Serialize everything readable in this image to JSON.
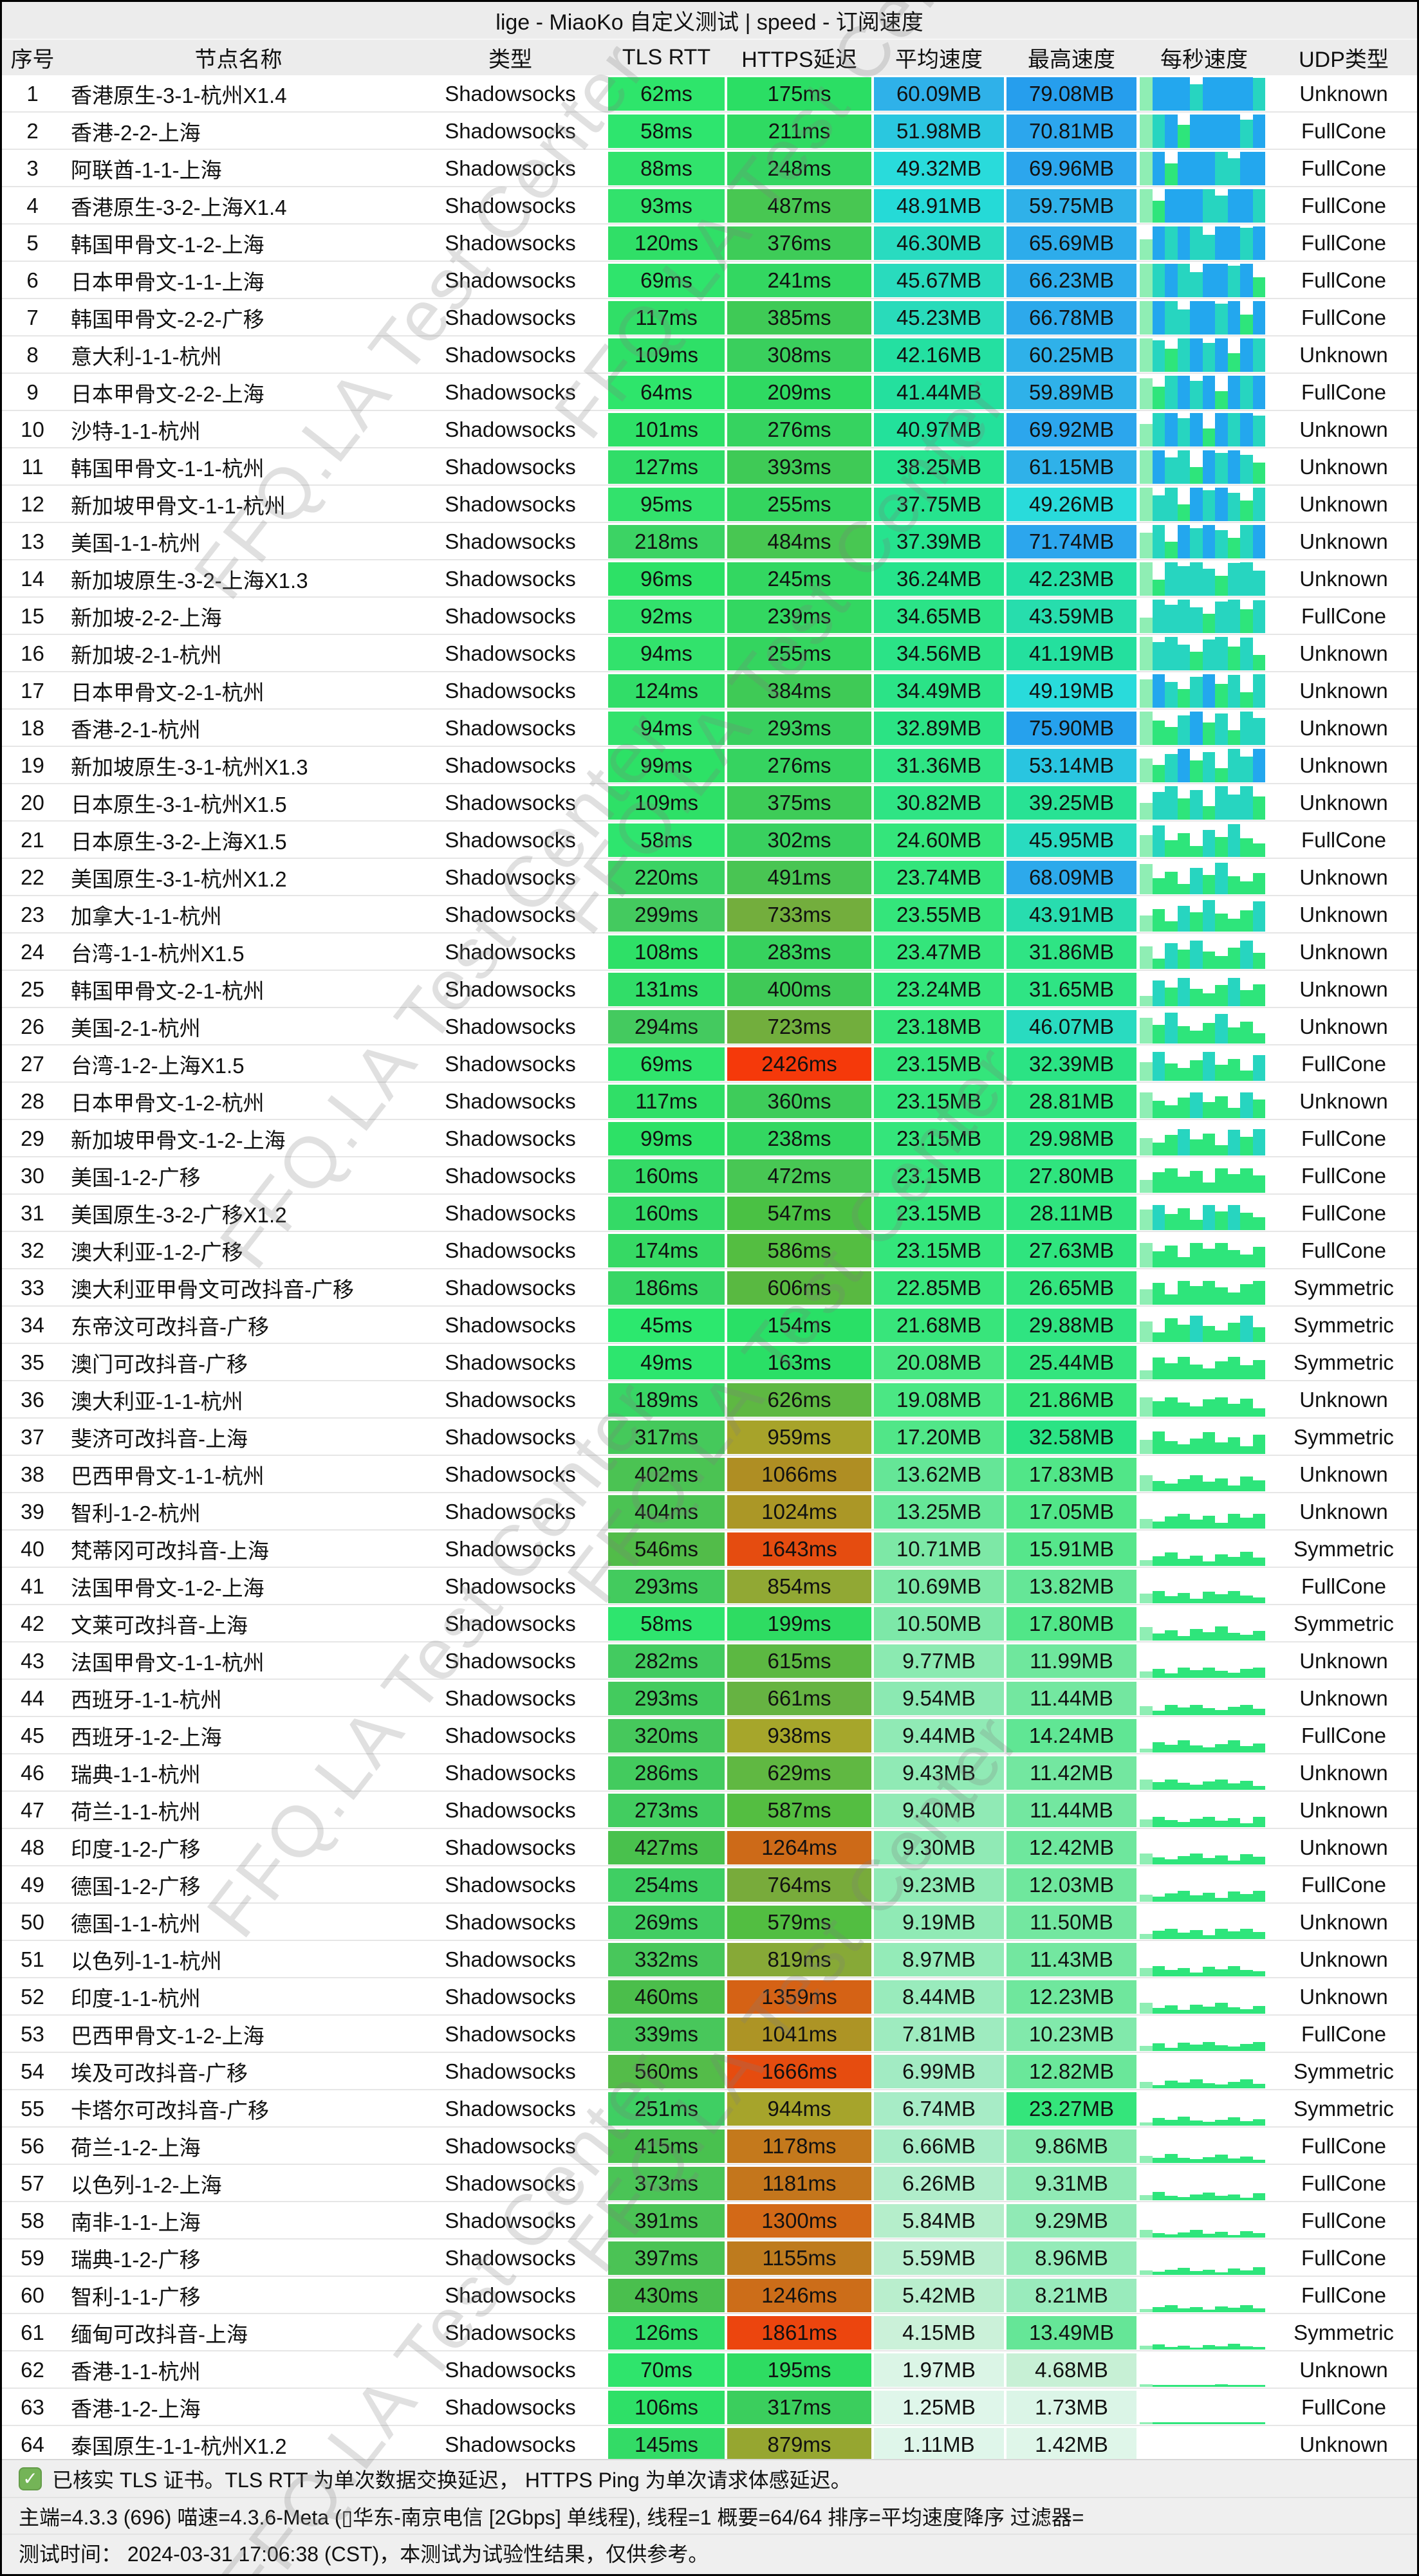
{
  "title": "lige - MiaoKo 自定义测试 | speed - 订阅速度",
  "columns": [
    "序号",
    "节点名称",
    "类型",
    "TLS RTT",
    "HTTPS延迟",
    "平均速度",
    "最高速度",
    "每秒速度",
    "UDP类型"
  ],
  "watermark_text": "FFQ.LA Test Center",
  "footer": {
    "line1": "已核实 TLS 证书。TLS RTT 为单次数据交换延迟， HTTPS Ping 为单次请求体感延迟。",
    "line2": "主端=4.3.3 (696) 喵速=4.3.6-Meta (▯华东-南京电信 [2Gbps] 单线程), 线程=1 概要=64/64 排序=平均速度降序 过滤器=",
    "line3": "测试时间： 2024-03-31 17:06:38 (CST)，本测试为试验性结果，仅供参考。"
  },
  "sparkline": {
    "profile": [
      0.62,
      1.02,
      1.45,
      0.78,
      1.08,
      0.5,
      1.25,
      0.92,
      1.5,
      0.85
    ],
    "scale_mb": 40,
    "color_blue": "#23a7ee",
    "color_teal": "#27d5c0",
    "color_green": "#2ee57b",
    "color_light": "#8feeb4"
  },
  "rows": [
    {
      "index": 1,
      "name": "香港原生-3-1-杭州X1.4",
      "type": "Shadowsocks",
      "tls_ms": 62,
      "https_ms": 175,
      "avg_mb": 60.09,
      "max_mb": 79.08,
      "udp": "Unknown"
    },
    {
      "index": 2,
      "name": "香港-2-2-上海",
      "type": "Shadowsocks",
      "tls_ms": 58,
      "https_ms": 211,
      "avg_mb": 51.98,
      "max_mb": 70.81,
      "udp": "FullCone"
    },
    {
      "index": 3,
      "name": "阿联酋-1-1-上海",
      "type": "Shadowsocks",
      "tls_ms": 88,
      "https_ms": 248,
      "avg_mb": 49.32,
      "max_mb": 69.96,
      "udp": "FullCone"
    },
    {
      "index": 4,
      "name": "香港原生-3-2-上海X1.4",
      "type": "Shadowsocks",
      "tls_ms": 93,
      "https_ms": 487,
      "avg_mb": 48.91,
      "max_mb": 59.75,
      "udp": "FullCone"
    },
    {
      "index": 5,
      "name": "韩国甲骨文-1-2-上海",
      "type": "Shadowsocks",
      "tls_ms": 120,
      "https_ms": 376,
      "avg_mb": 46.3,
      "max_mb": 65.69,
      "udp": "FullCone"
    },
    {
      "index": 6,
      "name": "日本甲骨文-1-1-上海",
      "type": "Shadowsocks",
      "tls_ms": 69,
      "https_ms": 241,
      "avg_mb": 45.67,
      "max_mb": 66.23,
      "udp": "FullCone"
    },
    {
      "index": 7,
      "name": "韩国甲骨文-2-2-广移",
      "type": "Shadowsocks",
      "tls_ms": 117,
      "https_ms": 385,
      "avg_mb": 45.23,
      "max_mb": 66.78,
      "udp": "FullCone"
    },
    {
      "index": 8,
      "name": "意大利-1-1-杭州",
      "type": "Shadowsocks",
      "tls_ms": 109,
      "https_ms": 308,
      "avg_mb": 42.16,
      "max_mb": 60.25,
      "udp": "Unknown"
    },
    {
      "index": 9,
      "name": "日本甲骨文-2-2-上海",
      "type": "Shadowsocks",
      "tls_ms": 64,
      "https_ms": 209,
      "avg_mb": 41.44,
      "max_mb": 59.89,
      "udp": "FullCone"
    },
    {
      "index": 10,
      "name": "沙特-1-1-杭州",
      "type": "Shadowsocks",
      "tls_ms": 101,
      "https_ms": 276,
      "avg_mb": 40.97,
      "max_mb": 69.92,
      "udp": "Unknown"
    },
    {
      "index": 11,
      "name": "韩国甲骨文-1-1-杭州",
      "type": "Shadowsocks",
      "tls_ms": 127,
      "https_ms": 393,
      "avg_mb": 38.25,
      "max_mb": 61.15,
      "udp": "Unknown"
    },
    {
      "index": 12,
      "name": "新加坡甲骨文-1-1-杭州",
      "type": "Shadowsocks",
      "tls_ms": 95,
      "https_ms": 255,
      "avg_mb": 37.75,
      "max_mb": 49.26,
      "udp": "Unknown"
    },
    {
      "index": 13,
      "name": "美国-1-1-杭州",
      "type": "Shadowsocks",
      "tls_ms": 218,
      "https_ms": 484,
      "avg_mb": 37.39,
      "max_mb": 71.74,
      "udp": "Unknown"
    },
    {
      "index": 14,
      "name": "新加坡原生-3-2-上海X1.3",
      "type": "Shadowsocks",
      "tls_ms": 96,
      "https_ms": 245,
      "avg_mb": 36.24,
      "max_mb": 42.23,
      "udp": "Unknown"
    },
    {
      "index": 15,
      "name": "新加坡-2-2-上海",
      "type": "Shadowsocks",
      "tls_ms": 92,
      "https_ms": 239,
      "avg_mb": 34.65,
      "max_mb": 43.59,
      "udp": "FullCone"
    },
    {
      "index": 16,
      "name": "新加坡-2-1-杭州",
      "type": "Shadowsocks",
      "tls_ms": 94,
      "https_ms": 255,
      "avg_mb": 34.56,
      "max_mb": 41.19,
      "udp": "Unknown"
    },
    {
      "index": 17,
      "name": "日本甲骨文-2-1-杭州",
      "type": "Shadowsocks",
      "tls_ms": 124,
      "https_ms": 384,
      "avg_mb": 34.49,
      "max_mb": 49.19,
      "udp": "Unknown"
    },
    {
      "index": 18,
      "name": "香港-2-1-杭州",
      "type": "Shadowsocks",
      "tls_ms": 94,
      "https_ms": 293,
      "avg_mb": 32.89,
      "max_mb": 75.9,
      "udp": "Unknown"
    },
    {
      "index": 19,
      "name": "新加坡原生-3-1-杭州X1.3",
      "type": "Shadowsocks",
      "tls_ms": 99,
      "https_ms": 276,
      "avg_mb": 31.36,
      "max_mb": 53.14,
      "udp": "Unknown"
    },
    {
      "index": 20,
      "name": "日本原生-3-1-杭州X1.5",
      "type": "Shadowsocks",
      "tls_ms": 109,
      "https_ms": 375,
      "avg_mb": 30.82,
      "max_mb": 39.25,
      "udp": "Unknown"
    },
    {
      "index": 21,
      "name": "日本原生-3-2-上海X1.5",
      "type": "Shadowsocks",
      "tls_ms": 58,
      "https_ms": 302,
      "avg_mb": 24.6,
      "max_mb": 45.95,
      "udp": "FullCone"
    },
    {
      "index": 22,
      "name": "美国原生-3-1-杭州X1.2",
      "type": "Shadowsocks",
      "tls_ms": 220,
      "https_ms": 491,
      "avg_mb": 23.74,
      "max_mb": 68.09,
      "udp": "Unknown"
    },
    {
      "index": 23,
      "name": "加拿大-1-1-杭州",
      "type": "Shadowsocks",
      "tls_ms": 299,
      "https_ms": 733,
      "avg_mb": 23.55,
      "max_mb": 43.91,
      "udp": "Unknown"
    },
    {
      "index": 24,
      "name": "台湾-1-1-杭州X1.5",
      "type": "Shadowsocks",
      "tls_ms": 108,
      "https_ms": 283,
      "avg_mb": 23.47,
      "max_mb": 31.86,
      "udp": "Unknown"
    },
    {
      "index": 25,
      "name": "韩国甲骨文-2-1-杭州",
      "type": "Shadowsocks",
      "tls_ms": 131,
      "https_ms": 400,
      "avg_mb": 23.24,
      "max_mb": 31.65,
      "udp": "Unknown"
    },
    {
      "index": 26,
      "name": "美国-2-1-杭州",
      "type": "Shadowsocks",
      "tls_ms": 294,
      "https_ms": 723,
      "avg_mb": 23.18,
      "max_mb": 46.07,
      "udp": "Unknown"
    },
    {
      "index": 27,
      "name": "台湾-1-2-上海X1.5",
      "type": "Shadowsocks",
      "tls_ms": 69,
      "https_ms": 2426,
      "avg_mb": 23.15,
      "max_mb": 32.39,
      "udp": "FullCone"
    },
    {
      "index": 28,
      "name": "日本甲骨文-1-2-杭州",
      "type": "Shadowsocks",
      "tls_ms": 117,
      "https_ms": 360,
      "avg_mb": 23.15,
      "max_mb": 28.81,
      "udp": "Unknown"
    },
    {
      "index": 29,
      "name": "新加坡甲骨文-1-2-上海",
      "type": "Shadowsocks",
      "tls_ms": 99,
      "https_ms": 238,
      "avg_mb": 23.15,
      "max_mb": 29.98,
      "udp": "FullCone"
    },
    {
      "index": 30,
      "name": "美国-1-2-广移",
      "type": "Shadowsocks",
      "tls_ms": 160,
      "https_ms": 472,
      "avg_mb": 23.15,
      "max_mb": 27.8,
      "udp": "FullCone"
    },
    {
      "index": 31,
      "name": "美国原生-3-2-广移X1.2",
      "type": "Shadowsocks",
      "tls_ms": 160,
      "https_ms": 547,
      "avg_mb": 23.15,
      "max_mb": 28.11,
      "udp": "FullCone"
    },
    {
      "index": 32,
      "name": "澳大利亚-1-2-广移",
      "type": "Shadowsocks",
      "tls_ms": 174,
      "https_ms": 586,
      "avg_mb": 23.15,
      "max_mb": 27.63,
      "udp": "FullCone"
    },
    {
      "index": 33,
      "name": "澳大利亚甲骨文可改抖音-广移",
      "type": "Shadowsocks",
      "tls_ms": 186,
      "https_ms": 606,
      "avg_mb": 22.85,
      "max_mb": 26.65,
      "udp": "Symmetric"
    },
    {
      "index": 34,
      "name": "东帝汶可改抖音-广移",
      "type": "Shadowsocks",
      "tls_ms": 45,
      "https_ms": 154,
      "avg_mb": 21.68,
      "max_mb": 29.88,
      "udp": "Symmetric"
    },
    {
      "index": 35,
      "name": "澳门可改抖音-广移",
      "type": "Shadowsocks",
      "tls_ms": 49,
      "https_ms": 163,
      "avg_mb": 20.08,
      "max_mb": 25.44,
      "udp": "Symmetric"
    },
    {
      "index": 36,
      "name": "澳大利亚-1-1-杭州",
      "type": "Shadowsocks",
      "tls_ms": 189,
      "https_ms": 626,
      "avg_mb": 19.08,
      "max_mb": 21.86,
      "udp": "Unknown"
    },
    {
      "index": 37,
      "name": "斐济可改抖音-上海",
      "type": "Shadowsocks",
      "tls_ms": 317,
      "https_ms": 959,
      "avg_mb": 17.2,
      "max_mb": 32.58,
      "udp": "Symmetric"
    },
    {
      "index": 38,
      "name": "巴西甲骨文-1-1-杭州",
      "type": "Shadowsocks",
      "tls_ms": 402,
      "https_ms": 1066,
      "avg_mb": 13.62,
      "max_mb": 17.83,
      "udp": "Unknown"
    },
    {
      "index": 39,
      "name": "智利-1-2-杭州",
      "type": "Shadowsocks",
      "tls_ms": 404,
      "https_ms": 1024,
      "avg_mb": 13.25,
      "max_mb": 17.05,
      "udp": "Unknown"
    },
    {
      "index": 40,
      "name": "梵蒂冈可改抖音-上海",
      "type": "Shadowsocks",
      "tls_ms": 546,
      "https_ms": 1643,
      "avg_mb": 10.71,
      "max_mb": 15.91,
      "udp": "Symmetric"
    },
    {
      "index": 41,
      "name": "法国甲骨文-1-2-上海",
      "type": "Shadowsocks",
      "tls_ms": 293,
      "https_ms": 854,
      "avg_mb": 10.69,
      "max_mb": 13.82,
      "udp": "FullCone"
    },
    {
      "index": 42,
      "name": "文莱可改抖音-上海",
      "type": "Shadowsocks",
      "tls_ms": 58,
      "https_ms": 199,
      "avg_mb": 10.5,
      "max_mb": 17.8,
      "udp": "Symmetric"
    },
    {
      "index": 43,
      "name": "法国甲骨文-1-1-杭州",
      "type": "Shadowsocks",
      "tls_ms": 282,
      "https_ms": 615,
      "avg_mb": 9.77,
      "max_mb": 11.99,
      "udp": "Unknown"
    },
    {
      "index": 44,
      "name": "西班牙-1-1-杭州",
      "type": "Shadowsocks",
      "tls_ms": 293,
      "https_ms": 661,
      "avg_mb": 9.54,
      "max_mb": 11.44,
      "udp": "Unknown"
    },
    {
      "index": 45,
      "name": "西班牙-1-2-上海",
      "type": "Shadowsocks",
      "tls_ms": 320,
      "https_ms": 938,
      "avg_mb": 9.44,
      "max_mb": 14.24,
      "udp": "FullCone"
    },
    {
      "index": 46,
      "name": "瑞典-1-1-杭州",
      "type": "Shadowsocks",
      "tls_ms": 286,
      "https_ms": 629,
      "avg_mb": 9.43,
      "max_mb": 11.42,
      "udp": "Unknown"
    },
    {
      "index": 47,
      "name": "荷兰-1-1-杭州",
      "type": "Shadowsocks",
      "tls_ms": 273,
      "https_ms": 587,
      "avg_mb": 9.4,
      "max_mb": 11.44,
      "udp": "Unknown"
    },
    {
      "index": 48,
      "name": "印度-1-2-广移",
      "type": "Shadowsocks",
      "tls_ms": 427,
      "https_ms": 1264,
      "avg_mb": 9.3,
      "max_mb": 12.42,
      "udp": "Unknown"
    },
    {
      "index": 49,
      "name": "德国-1-2-广移",
      "type": "Shadowsocks",
      "tls_ms": 254,
      "https_ms": 764,
      "avg_mb": 9.23,
      "max_mb": 12.03,
      "udp": "FullCone"
    },
    {
      "index": 50,
      "name": "德国-1-1-杭州",
      "type": "Shadowsocks",
      "tls_ms": 269,
      "https_ms": 579,
      "avg_mb": 9.19,
      "max_mb": 11.5,
      "udp": "Unknown"
    },
    {
      "index": 51,
      "name": "以色列-1-1-杭州",
      "type": "Shadowsocks",
      "tls_ms": 332,
      "https_ms": 819,
      "avg_mb": 8.97,
      "max_mb": 11.43,
      "udp": "Unknown"
    },
    {
      "index": 52,
      "name": "印度-1-1-杭州",
      "type": "Shadowsocks",
      "tls_ms": 460,
      "https_ms": 1359,
      "avg_mb": 8.44,
      "max_mb": 12.23,
      "udp": "Unknown"
    },
    {
      "index": 53,
      "name": "巴西甲骨文-1-2-上海",
      "type": "Shadowsocks",
      "tls_ms": 339,
      "https_ms": 1041,
      "avg_mb": 7.81,
      "max_mb": 10.23,
      "udp": "FullCone"
    },
    {
      "index": 54,
      "name": "埃及可改抖音-广移",
      "type": "Shadowsocks",
      "tls_ms": 560,
      "https_ms": 1666,
      "avg_mb": 6.99,
      "max_mb": 12.82,
      "udp": "Symmetric"
    },
    {
      "index": 55,
      "name": "卡塔尔可改抖音-广移",
      "type": "Shadowsocks",
      "tls_ms": 251,
      "https_ms": 944,
      "avg_mb": 6.74,
      "max_mb": 23.27,
      "udp": "Symmetric"
    },
    {
      "index": 56,
      "name": "荷兰-1-2-上海",
      "type": "Shadowsocks",
      "tls_ms": 415,
      "https_ms": 1178,
      "avg_mb": 6.66,
      "max_mb": 9.86,
      "udp": "FullCone"
    },
    {
      "index": 57,
      "name": "以色列-1-2-上海",
      "type": "Shadowsocks",
      "tls_ms": 373,
      "https_ms": 1181,
      "avg_mb": 6.26,
      "max_mb": 9.31,
      "udp": "FullCone"
    },
    {
      "index": 58,
      "name": "南非-1-1-上海",
      "type": "Shadowsocks",
      "tls_ms": 391,
      "https_ms": 1300,
      "avg_mb": 5.84,
      "max_mb": 9.29,
      "udp": "FullCone"
    },
    {
      "index": 59,
      "name": "瑞典-1-2-广移",
      "type": "Shadowsocks",
      "tls_ms": 397,
      "https_ms": 1155,
      "avg_mb": 5.59,
      "max_mb": 8.96,
      "udp": "FullCone"
    },
    {
      "index": 60,
      "name": "智利-1-1-广移",
      "type": "Shadowsocks",
      "tls_ms": 430,
      "https_ms": 1246,
      "avg_mb": 5.42,
      "max_mb": 8.21,
      "udp": "FullCone"
    },
    {
      "index": 61,
      "name": "缅甸可改抖音-上海",
      "type": "Shadowsocks",
      "tls_ms": 126,
      "https_ms": 1861,
      "avg_mb": 4.15,
      "max_mb": 13.49,
      "udp": "Symmetric"
    },
    {
      "index": 62,
      "name": "香港-1-1-杭州",
      "type": "Shadowsocks",
      "tls_ms": 70,
      "https_ms": 195,
      "avg_mb": 1.97,
      "max_mb": 4.68,
      "udp": "Unknown"
    },
    {
      "index": 63,
      "name": "香港-1-2-上海",
      "type": "Shadowsocks",
      "tls_ms": 106,
      "https_ms": 317,
      "avg_mb": 1.25,
      "max_mb": 1.73,
      "udp": "FullCone"
    },
    {
      "index": 64,
      "name": "泰国原生-1-1-杭州X1.2",
      "type": "Shadowsocks",
      "tls_ms": 145,
      "https_ms": 879,
      "avg_mb": 1.11,
      "max_mb": 1.42,
      "udp": "Unknown"
    }
  ]
}
